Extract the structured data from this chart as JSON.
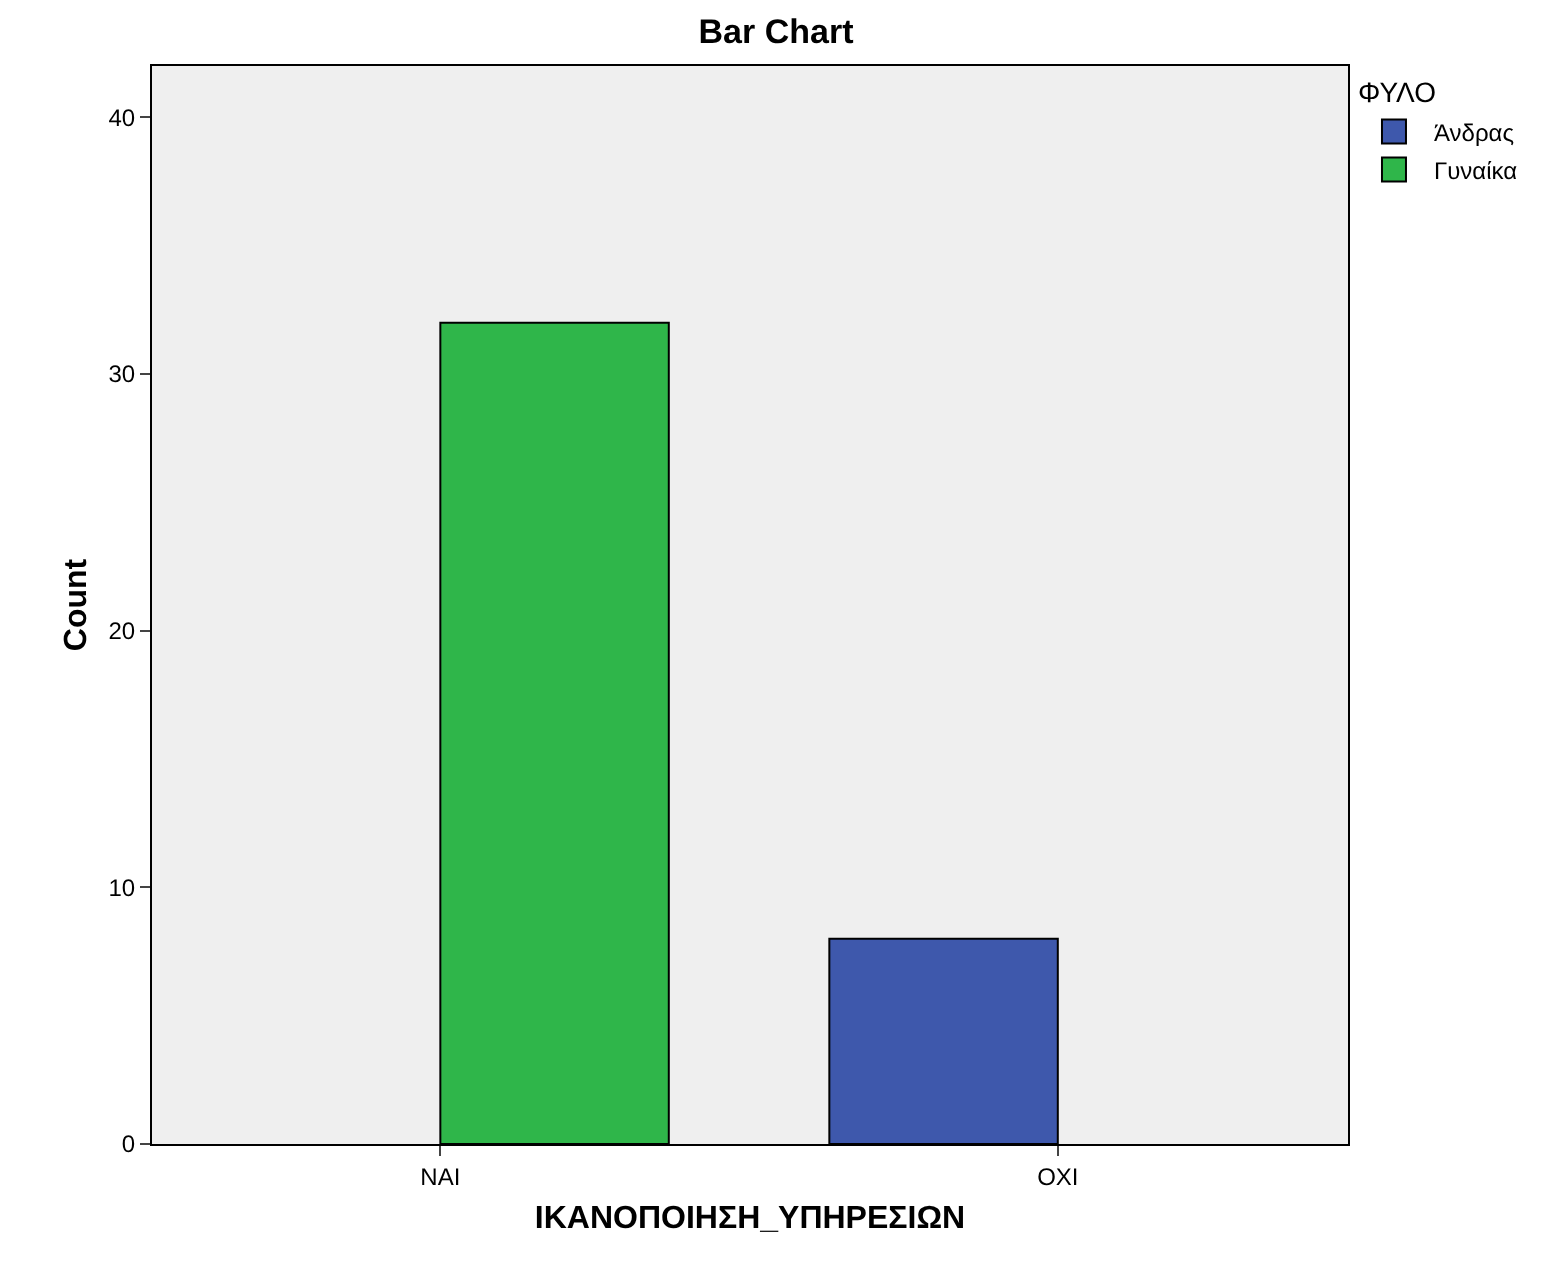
{
  "chart_data": {
    "type": "bar",
    "title": "Bar Chart",
    "xlabel": "ΙΚΑΝΟΠΟΙΗΣΗ_ΥΠΗΡΕΣΙΩΝ",
    "ylabel": "Count",
    "legend_title": "ΦΥΛΟ",
    "categories": [
      "ΝΑΙ",
      "ΟΧΙ"
    ],
    "series": [
      {
        "name": "Άνδρας",
        "color": "#3e58ac",
        "values": [
          null,
          8
        ]
      },
      {
        "name": "Γυναίκα",
        "color": "#2fb64a",
        "values": [
          32,
          null
        ]
      }
    ],
    "ylim": [
      0,
      42
    ],
    "yticks": [
      0,
      10,
      20,
      30,
      40
    ],
    "grid": false,
    "legend": "top right"
  }
}
